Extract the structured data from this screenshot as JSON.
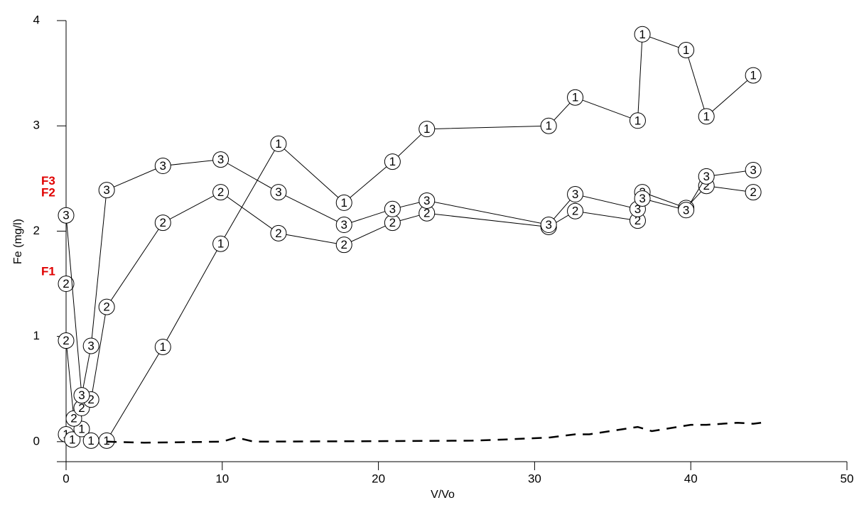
{
  "chart_data": {
    "type": "line",
    "y_label": "Fe (mg/l)",
    "x_label": "V/Vo",
    "xlim": [
      0,
      50
    ],
    "xticks": [
      0,
      10,
      20,
      30,
      40,
      50
    ],
    "ylim": [
      -0.19,
      4
    ],
    "yticks": [
      0,
      1,
      2,
      3,
      4
    ],
    "annotations": [
      {
        "text": "F3",
        "y": 2.47
      },
      {
        "text": "F2",
        "y": 2.36
      },
      {
        "text": "F1",
        "y": 1.61
      }
    ],
    "series": [
      {
        "marker": "1",
        "color": "#000000",
        "x": [
          0,
          0.4,
          1.0,
          1.6,
          2.6,
          6.2,
          9.9,
          13.6,
          17.8,
          20.9,
          23.1,
          30.9,
          32.6,
          36.6,
          36.9,
          39.7,
          41.0,
          44.0
        ],
        "values": [
          0.07,
          0.02,
          0.12,
          0.01,
          0.01,
          0.9,
          1.88,
          2.83,
          2.27,
          2.66,
          2.97,
          3.0,
          3.27,
          3.05,
          3.87,
          3.72,
          3.09,
          3.48
        ]
      },
      {
        "marker": "2",
        "color": "#000000",
        "x": [
          0,
          0,
          0.5,
          1.0,
          1.6,
          2.6,
          6.2,
          9.9,
          13.6,
          17.8,
          20.9,
          23.1,
          30.9,
          32.6,
          36.6,
          36.9,
          39.7,
          41.0,
          44.0
        ],
        "values": [
          1.5,
          0.96,
          0.22,
          0.32,
          0.4,
          1.28,
          2.08,
          2.37,
          1.98,
          1.87,
          2.08,
          2.17,
          2.04,
          2.19,
          2.1,
          2.37,
          2.22,
          2.43,
          2.37
        ]
      },
      {
        "marker": "3",
        "color": "#000000",
        "x": [
          0,
          1.0,
          1.6,
          2.6,
          6.2,
          9.9,
          13.6,
          17.8,
          20.9,
          23.1,
          30.9,
          32.6,
          36.6,
          36.9,
          39.7,
          41.0,
          44.0
        ],
        "values": [
          2.15,
          0.44,
          0.91,
          2.39,
          2.62,
          2.68,
          2.37,
          2.06,
          2.21,
          2.29,
          2.06,
          2.35,
          2.21,
          2.31,
          2.2,
          2.52,
          2.58
        ]
      },
      {
        "dashed": true,
        "color": "#000000",
        "x": [
          2.6,
          5,
          10,
          10.9,
          12,
          20,
          26,
          28,
          31,
          32.6,
          33.5,
          36.6,
          37.5,
          40,
          41,
          43,
          44,
          44.5
        ],
        "values": [
          0,
          -0.01,
          0,
          0.04,
          0,
          0.005,
          0.01,
          0.02,
          0.04,
          0.07,
          0.07,
          0.14,
          0.1,
          0.16,
          0.16,
          0.18,
          0.17,
          0.18
        ]
      }
    ]
  }
}
